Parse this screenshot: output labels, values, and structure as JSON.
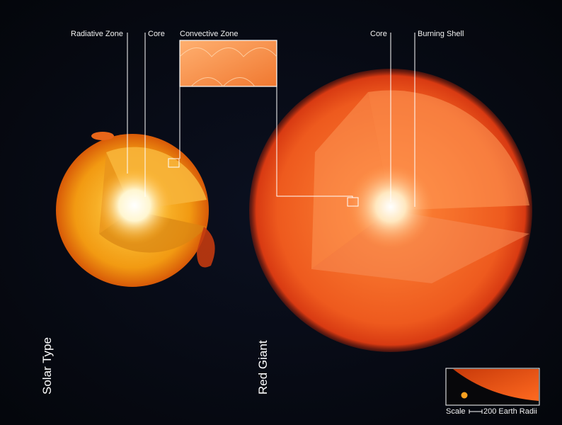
{
  "solar": {
    "title": "Solar Type",
    "labels": {
      "radiative_zone": "Radiative Zone",
      "core": "Core",
      "convective_zone": "Convective Zone"
    }
  },
  "red_giant": {
    "title": "Red Giant",
    "labels": {
      "core": "Core",
      "burning_shell": "Burning Shell"
    }
  },
  "scale": {
    "label": "Scale",
    "value": "200 Earth Radii"
  },
  "colors": {
    "solar_star": "#f5a623",
    "red_giant": "#e8431a",
    "core": "#ffffff",
    "background": "#05070d",
    "lines": "#ffffff"
  }
}
